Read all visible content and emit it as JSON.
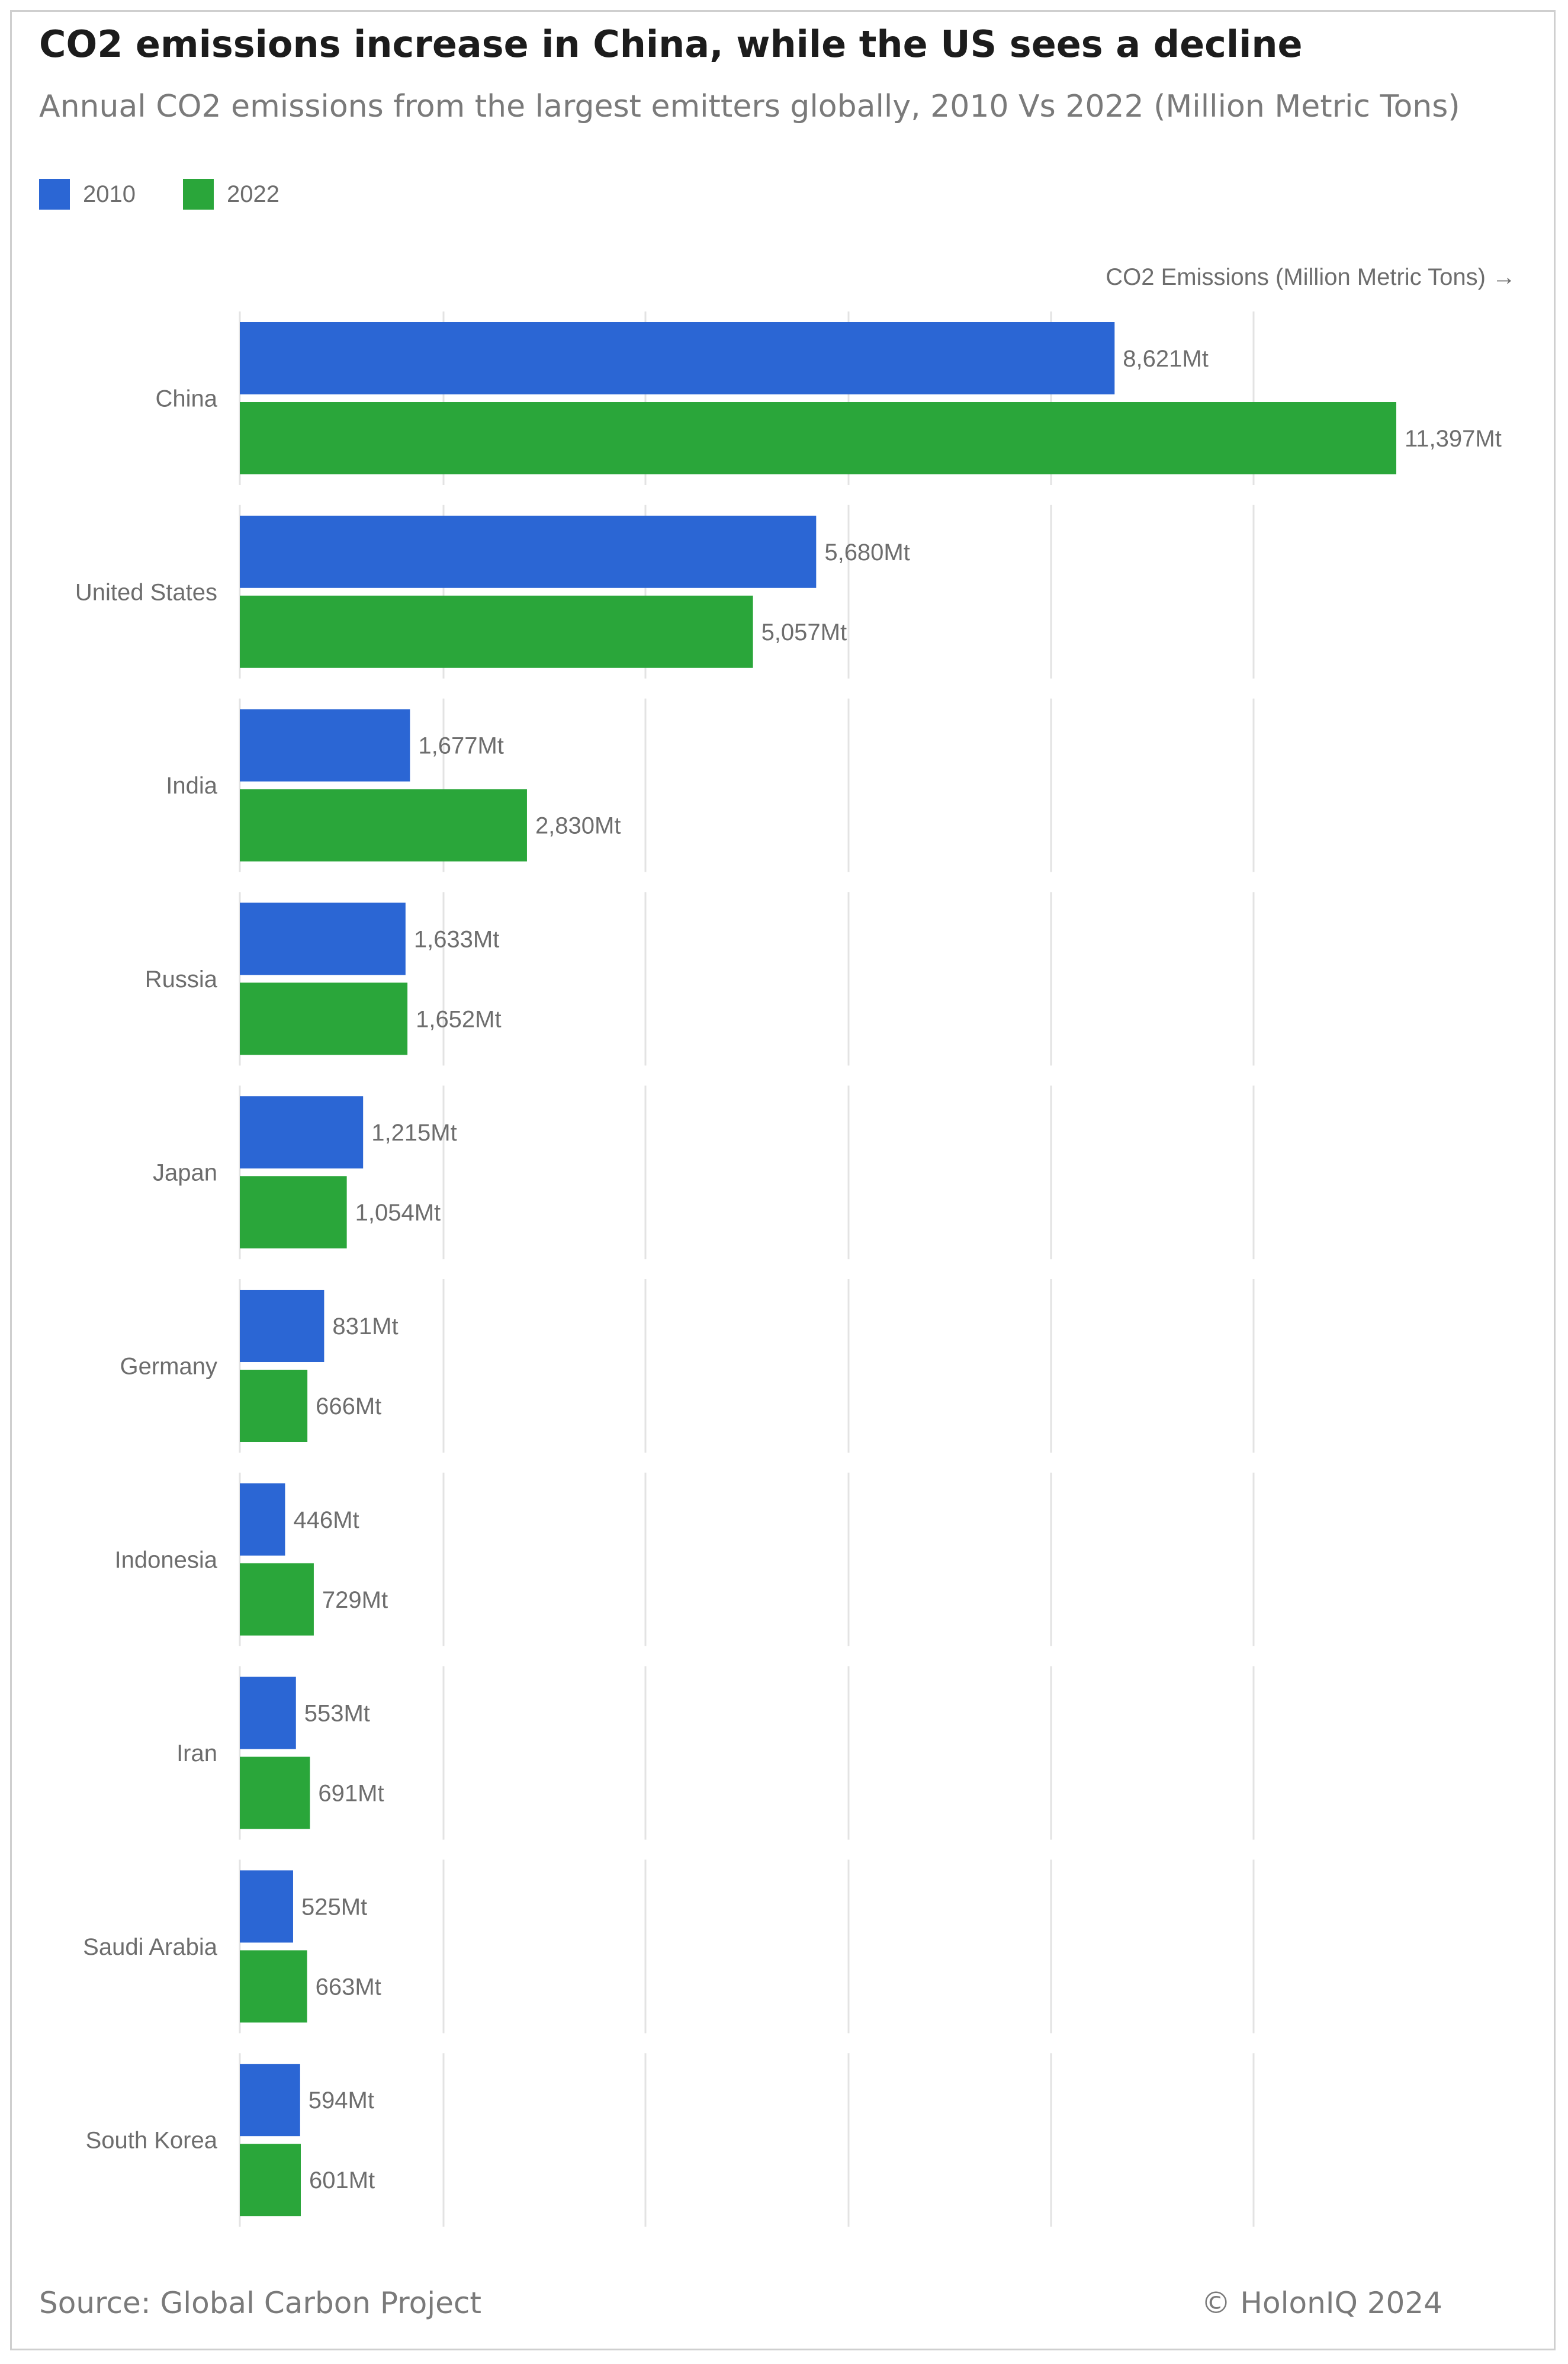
{
  "header": {
    "title": "CO2 emissions increase in China, while the US sees a decline",
    "subtitle": "Annual CO2 emissions from the largest emitters globally, 2010 Vs 2022 (Million Metric Tons)"
  },
  "axis_caption": "CO2 Emissions (Million Metric Tons) →",
  "footer": {
    "source": "Source: Global Carbon Project",
    "copyright": "© HolonIQ 2024"
  },
  "chart_data": {
    "type": "bar",
    "orientation": "horizontal",
    "title": "CO2 emissions increase in China, while the US sees a decline",
    "xlabel": "CO2 Emissions (Million Metric Tons)",
    "ylabel": "",
    "xlim": [
      0,
      12500
    ],
    "grid": true,
    "value_suffix": "Mt",
    "categories": [
      "China",
      "United States",
      "India",
      "Russia",
      "Japan",
      "Germany",
      "Indonesia",
      "Iran",
      "Saudi Arabia",
      "South Korea"
    ],
    "series": [
      {
        "name": "2010",
        "color": "#2b66d4",
        "values": [
          8621,
          5680,
          1677,
          1633,
          1215,
          831,
          446,
          553,
          525,
          594
        ],
        "labels": [
          "8,621Mt",
          "5,680Mt",
          "1,677Mt",
          "1,633Mt",
          "1,215Mt",
          "831Mt",
          "446Mt",
          "553Mt",
          "525Mt",
          "594Mt"
        ]
      },
      {
        "name": "2022",
        "color": "#2aa63a",
        "values": [
          11397,
          5057,
          2830,
          1652,
          1054,
          666,
          729,
          691,
          663,
          601
        ],
        "labels": [
          "11,397Mt",
          "5,057Mt",
          "2,830Mt",
          "1,652Mt",
          "1,054Mt",
          "666Mt",
          "729Mt",
          "691Mt",
          "663Mt",
          "601Mt"
        ]
      }
    ]
  }
}
